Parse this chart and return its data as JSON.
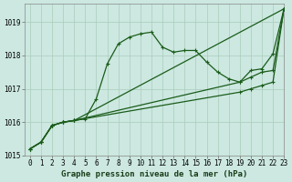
{
  "xlabel": "Graphe pression niveau de la mer (hPa)",
  "ylim": [
    1015.0,
    1019.55
  ],
  "xlim": [
    -0.5,
    23
  ],
  "yticks": [
    1015,
    1016,
    1017,
    1018,
    1019
  ],
  "xticks": [
    0,
    1,
    2,
    3,
    4,
    5,
    6,
    7,
    8,
    9,
    10,
    11,
    12,
    13,
    14,
    15,
    16,
    17,
    18,
    19,
    20,
    21,
    22,
    23
  ],
  "bg_color": "#cce8e0",
  "grid_color": "#aaccbb",
  "line_color": "#1a5c1a",
  "lines": [
    {
      "x": [
        0,
        1,
        2,
        3,
        4,
        5,
        6,
        7,
        8,
        9,
        10,
        11,
        12,
        13,
        14,
        15,
        16,
        17,
        18,
        19,
        20,
        21,
        22,
        23
      ],
      "y": [
        1015.2,
        1015.4,
        1015.9,
        1016.0,
        1016.05,
        1016.1,
        1016.7,
        1017.75,
        1018.35,
        1018.55,
        1018.65,
        1018.7,
        1018.25,
        1018.1,
        1018.15,
        1018.15,
        1017.8,
        1017.5,
        1017.3,
        1017.2,
        1017.55,
        1017.6,
        1018.05,
        1019.4
      ],
      "marker": "+"
    },
    {
      "x": [
        0,
        1,
        2,
        3,
        4,
        23
      ],
      "y": [
        1015.2,
        1015.4,
        1015.9,
        1016.0,
        1016.05,
        1019.4
      ],
      "marker": "+"
    },
    {
      "x": [
        0,
        1,
        2,
        3,
        4,
        19,
        20,
        21,
        22,
        23
      ],
      "y": [
        1015.2,
        1015.4,
        1015.9,
        1016.0,
        1016.05,
        1017.2,
        1017.35,
        1017.5,
        1017.55,
        1019.4
      ],
      "marker": "+"
    },
    {
      "x": [
        0,
        1,
        2,
        3,
        4,
        19,
        20,
        21,
        22,
        23
      ],
      "y": [
        1015.2,
        1015.4,
        1015.9,
        1016.0,
        1016.05,
        1016.9,
        1017.0,
        1017.1,
        1017.2,
        1019.4
      ],
      "marker": "+"
    }
  ],
  "font_family": "monospace",
  "label_fontsize": 6.5,
  "tick_fontsize": 5.5
}
